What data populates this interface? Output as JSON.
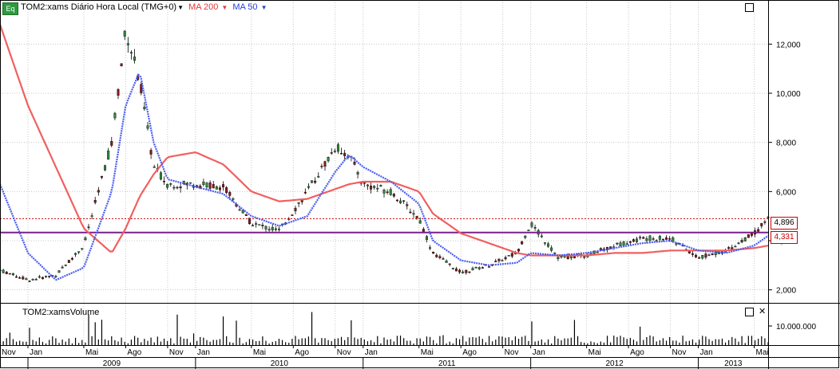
{
  "header": {
    "badge": "Eq",
    "symbol_label": "TOM2:xams Diário Hora Local (TMG+0)",
    "ma200_label": "MA 200",
    "ma50_label": "MA 50"
  },
  "volume_panel": {
    "title": "TOM2:xamsVolume",
    "tick_label": "10.000.000"
  },
  "price_tags": {
    "last": "4,896",
    "line": "4,331"
  },
  "colors": {
    "ma200": "#f06060",
    "ma50": "#4a5cf0",
    "level_line": "#7a1f8a",
    "last_line": "#cc0000",
    "up_candle": "#2e8b3a",
    "down_candle": "#8b1a1a"
  },
  "chart_data": {
    "type": "line",
    "title": "TOM2:xams Diário Hora Local (TMG+0)",
    "yaxis": {
      "ticks": [
        "2,000",
        "4,000",
        "6,000",
        "8,000",
        "10,000",
        "12,000"
      ],
      "range": [
        1600,
        13600
      ]
    },
    "xaxis": {
      "month_labels": [
        "Nov",
        "Jan",
        "Mai",
        "Ago",
        "Nov",
        "Jan",
        "Mai",
        "Ago",
        "Nov",
        "Jan",
        "Mai",
        "Ago",
        "Nov",
        "Jan",
        "Mai",
        "Ago",
        "Nov",
        "Jan",
        "Mai"
      ],
      "year_labels": [
        "2009",
        "2010",
        "2011",
        "2012",
        "2013"
      ]
    },
    "x": [
      "2008-11",
      "2009-01",
      "2009-03",
      "2009-05",
      "2009-07",
      "2009-08",
      "2009-09",
      "2009-10",
      "2009-11",
      "2010-01",
      "2010-03",
      "2010-05",
      "2010-07",
      "2010-09",
      "2010-11",
      "2010-12",
      "2011-01",
      "2011-03",
      "2011-05",
      "2011-06",
      "2011-08",
      "2011-10",
      "2011-12",
      "2012-01",
      "2012-03",
      "2012-05",
      "2012-07",
      "2012-09",
      "2012-11",
      "2013-01",
      "2013-03",
      "2013-05",
      "2013-06"
    ],
    "series": [
      {
        "name": "TOM2:xams",
        "values": [
          2800,
          2400,
          2600,
          3800,
          8000,
          12600,
          10500,
          7000,
          6300,
          6300,
          6200,
          4700,
          4400,
          6000,
          7800,
          7500,
          6300,
          6000,
          4900,
          3500,
          2700,
          3000,
          3500,
          4700,
          3300,
          3400,
          3800,
          4100,
          4100,
          3300,
          3600,
          4300,
          4900
        ]
      },
      {
        "name": "MA 200",
        "values": [
          12800,
          9500,
          7000,
          4500,
          3500,
          4500,
          5800,
          6700,
          7400,
          7600,
          7100,
          6000,
          5600,
          5700,
          6100,
          6300,
          6400,
          6400,
          6000,
          5100,
          4300,
          3900,
          3500,
          3400,
          3400,
          3400,
          3500,
          3500,
          3600,
          3600,
          3600,
          3700,
          3800
        ]
      },
      {
        "name": "MA 50",
        "values": [
          6300,
          3500,
          2400,
          2900,
          6000,
          9500,
          10900,
          8000,
          6500,
          6200,
          5900,
          5000,
          4600,
          5000,
          6800,
          7500,
          7000,
          6400,
          5500,
          4000,
          3200,
          3000,
          3100,
          3500,
          3400,
          3500,
          3700,
          3900,
          4000,
          3600,
          3500,
          3800,
          4200
        ]
      }
    ],
    "levels": {
      "horizontal_line": 4331,
      "last_price": 4896
    },
    "volume_ticks": [
      "10.000.000"
    ]
  }
}
